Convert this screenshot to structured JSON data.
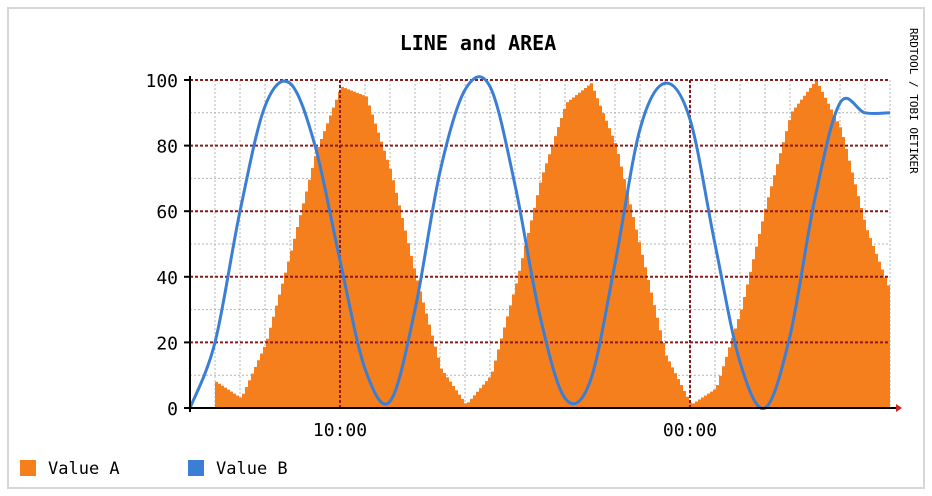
{
  "chart_data": {
    "type": "area",
    "title": "LINE and AREA",
    "xlabel": "",
    "ylabel": "",
    "ylim": [
      0,
      100
    ],
    "yticks": [
      0,
      20,
      40,
      60,
      80,
      100
    ],
    "xtick_labels": [
      "10:00",
      "00:00"
    ],
    "grid": true,
    "legend": "bottom-left",
    "side_label": "RRDTOOL / TOBI OETIKER",
    "colors": {
      "area": "#f57f1c",
      "line": "#3a7fd5",
      "major_grid": "#8b1a1a",
      "minor_grid": "#b4b4b4",
      "frame": "#d7d7d7"
    },
    "series": [
      {
        "name": "Value A",
        "type": "area",
        "x": [
          "05:00",
          "06:00",
          "07:00",
          "08:00",
          "09:00",
          "10:00",
          "11:00",
          "12:00",
          "13:00",
          "14:00",
          "15:00",
          "16:00",
          "17:00",
          "18:00",
          "19:00",
          "20:00",
          "21:00",
          "22:00",
          "23:00",
          "00:00",
          "01:00",
          "02:00",
          "03:00",
          "04:00",
          "05:00",
          "06:00",
          "07:00",
          "08:00"
        ],
        "values": [
          8,
          3,
          20,
          48,
          78,
          98,
          95,
          72,
          40,
          12,
          1,
          10,
          38,
          70,
          93,
          99,
          80,
          48,
          16,
          1,
          6,
          30,
          62,
          90,
          100,
          85,
          55,
          35
        ]
      },
      {
        "name": "Value B",
        "type": "line",
        "x": [
          "04:00",
          "05:00",
          "06:00",
          "07:00",
          "08:00",
          "09:00",
          "10:00",
          "11:00",
          "12:00",
          "13:00",
          "14:00",
          "15:00",
          "16:00",
          "17:00",
          "18:00",
          "19:00",
          "20:00",
          "21:00",
          "22:00",
          "23:00",
          "00:00",
          "01:00",
          "02:00",
          "03:00",
          "04:00",
          "05:00",
          "06:00",
          "07:00",
          "08:00"
        ],
        "values": [
          0,
          20,
          60,
          92,
          99,
          80,
          45,
          12,
          2,
          30,
          72,
          97,
          98,
          68,
          28,
          3,
          8,
          44,
          85,
          99,
          88,
          50,
          14,
          0,
          22,
          64,
          93,
          90,
          90
        ]
      }
    ]
  }
}
